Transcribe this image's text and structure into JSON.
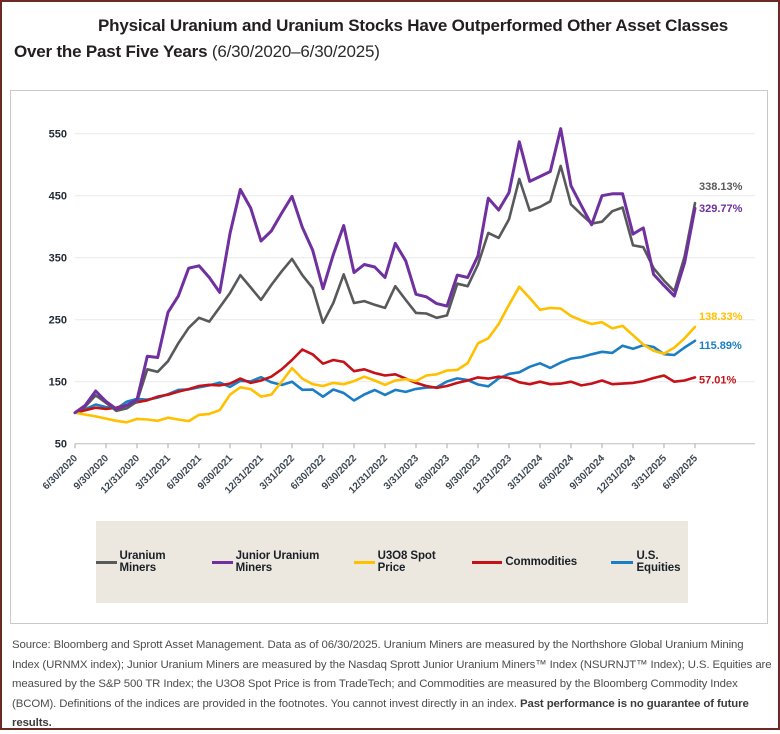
{
  "title": {
    "bold": "Physical Uranium and Uranium Stocks Have Outperformed Other Asset Classes Over the Past Five Years",
    "period": " (6/30/2020–6/30/2025)"
  },
  "chart_data": {
    "type": "line",
    "title": "Physical Uranium and Uranium Stocks Have Outperformed Other Asset Classes Over the Past Five Years (6/30/2020–6/30/2025)",
    "x_axis": "monthly dates from 6/30/2020 to 6/30/2025, quarterly tick labels",
    "x_tick_labels": [
      "6/30/2020",
      "9/30/2020",
      "12/31/2020",
      "3/31/2021",
      "6/30/2021",
      "9/30/2021",
      "12/31/2021",
      "3/31/2022",
      "6/30/2022",
      "9/30/2022",
      "12/31/2022",
      "3/31/2023",
      "6/30/2023",
      "9/30/2023",
      "12/31/2023",
      "3/31/2024",
      "6/30/2024",
      "9/30/2024",
      "12/31/2024",
      "3/31/2025",
      "6/30/2025"
    ],
    "y_ticks": [
      50,
      150,
      250,
      350,
      450,
      550
    ],
    "ylim": [
      50,
      590
    ],
    "grid": "horizontal",
    "legend_position": "bottom",
    "note": "values indexed to 100 at 6/30/2020; end labels show total return percent",
    "series": [
      {
        "name": "Uranium Miners",
        "color": "#58595b",
        "end_label": "338.13%",
        "values": [
          100,
          110,
          128,
          116,
          103,
          107,
          118,
          170,
          166,
          183,
          212,
          237,
          253,
          247,
          270,
          293,
          322,
          302,
          282,
          306,
          328,
          348,
          322,
          301,
          245,
          277,
          323,
          277,
          280,
          274,
          269,
          304,
          282,
          261,
          260,
          253,
          257,
          308,
          304,
          339,
          390,
          382,
          412,
          477,
          426,
          432,
          441,
          498,
          436,
          420,
          405,
          408,
          425,
          431,
          370,
          367,
          333,
          313,
          296,
          352,
          438.13
        ]
      },
      {
        "name": "Junior Uranium Miners",
        "color": "#7030a0",
        "end_label": "329.77%",
        "values": [
          100,
          112,
          135,
          118,
          106,
          112,
          121,
          191,
          189,
          262,
          288,
          333,
          337,
          318,
          294,
          389,
          460,
          430,
          377,
          393,
          422,
          449,
          399,
          362,
          300,
          355,
          402,
          326,
          339,
          335,
          318,
          373,
          345,
          291,
          287,
          276,
          272,
          322,
          318,
          353,
          446,
          427,
          455,
          537,
          473,
          481,
          489,
          558,
          466,
          434,
          403,
          450,
          453,
          453,
          388,
          398,
          323,
          305,
          288,
          342,
          429.77
        ]
      },
      {
        "name": "U3O8 Spot Price",
        "color": "#ffc000",
        "end_label": "138.33%",
        "values": [
          100,
          97,
          94,
          90.5,
          87,
          84.5,
          90,
          89,
          87,
          92,
          89,
          86.5,
          96.5,
          98,
          104,
          129,
          141,
          138,
          126,
          129,
          150,
          172,
          155,
          146,
          143,
          148,
          146,
          151,
          158,
          152,
          145,
          152,
          154,
          151,
          160,
          162,
          168,
          169,
          180,
          212,
          220,
          243,
          274,
          303,
          285,
          266,
          269,
          268,
          256,
          249,
          243,
          246,
          236,
          240,
          225,
          210,
          200,
          195,
          205,
          220,
          238.33
        ]
      },
      {
        "name": "Commodities",
        "color": "#c41218",
        "end_label": "57.01%",
        "values": [
          100,
          104,
          108,
          106,
          108,
          112,
          117,
          120,
          126,
          129,
          134,
          138,
          143,
          145,
          144,
          147,
          155,
          148,
          152,
          158,
          170,
          185,
          202,
          194,
          179,
          185,
          182,
          167,
          170,
          164,
          160,
          162,
          155,
          148,
          143,
          140,
          143,
          148,
          152,
          157,
          155,
          158,
          156,
          149,
          146,
          150,
          146,
          147,
          150,
          144,
          147,
          152,
          146,
          147,
          148,
          151,
          156,
          160,
          150,
          152,
          157.01
        ]
      },
      {
        "name": "U.S. Equities",
        "color": "#1b7ec4",
        "end_label": "115.89%",
        "values": [
          100,
          105.6,
          113.3,
          109,
          106.1,
          117.7,
          122.2,
          121,
          124.3,
          129.8,
          136.7,
          137.6,
          140.8,
          144.1,
          148.5,
          141.6,
          151.5,
          150.5,
          157.2,
          149.1,
          144.6,
          150,
          136.9,
          137.2,
          125.8,
          137.4,
          131.8,
          119.7,
          129.4,
          136.6,
          128.7,
          136.8,
          133.5,
          138.4,
          140.5,
          141.1,
          150.4,
          155.3,
          152.8,
          145.5,
          142.4,
          155.4,
          162.5,
          165.2,
          174,
          179.6,
          172.3,
          180.8,
          187.3,
          189.6,
          194.2,
          198.3,
          196.5,
          208.1,
          203.1,
          208.8,
          205.9,
          194.3,
          193,
          205.2,
          215.89
        ]
      }
    ]
  },
  "legend": {
    "items": [
      {
        "label": "Uranium Miners",
        "color": "#58595b"
      },
      {
        "label": "Junior Uranium Miners",
        "color": "#7030a0"
      },
      {
        "label": "U3O8 Spot Price",
        "color": "#ffc000"
      },
      {
        "label": "Commodities",
        "color": "#c41218"
      },
      {
        "label": "U.S. Equities",
        "color": "#1b7ec4"
      }
    ]
  },
  "footnote": {
    "text": "Source: Bloomberg and Sprott Asset Management. Data as of 06/30/2025. Uranium Miners are measured by the Northshore Global Uranium Mining Index (URNMX index); Junior Uranium Miners are measured by the Nasdaq Sprott Junior Uranium Miners™ Index (NSURNJT™ Index); U.S. Equities are measured by the S&P 500 TR Index; the U3O8 Spot Price is from TradeTech; and Commodities are measured by the Bloomberg Commodity Index (BCOM). Definitions of the indices are provided in the footnotes. You cannot invest directly in an index. ",
    "bold": "Past performance is no guarantee of future results."
  }
}
